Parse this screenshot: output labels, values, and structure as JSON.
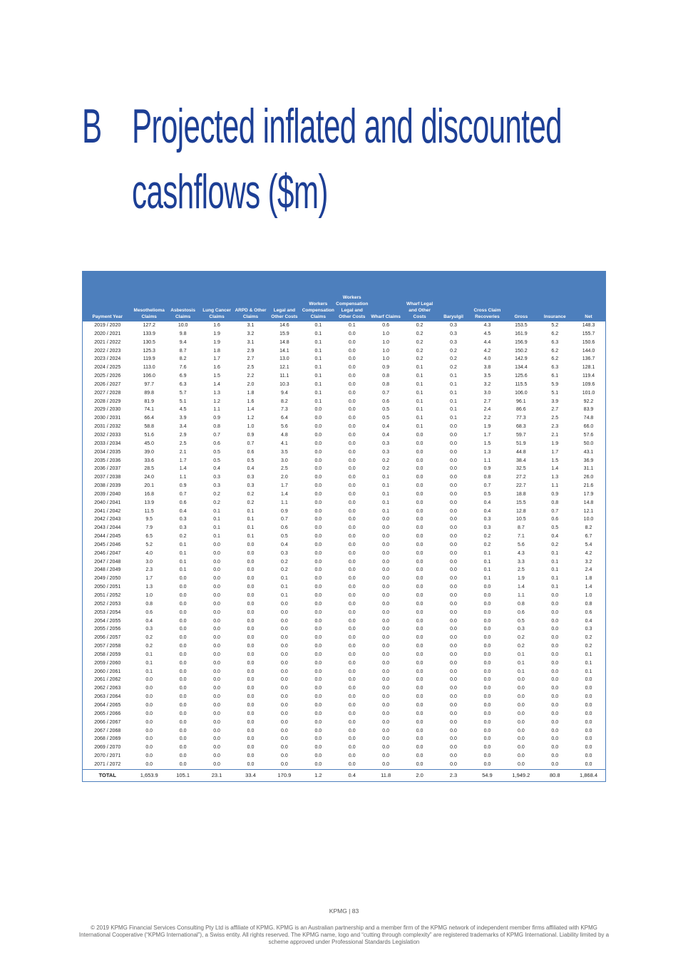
{
  "header": {
    "letter": "B",
    "title_line1": "Projected inflated and discounted",
    "title_line2": "cashflows ($m)"
  },
  "table": {
    "columns": [
      "Payment Year",
      "Mesothelioma Claims",
      "Asbestosis Claims",
      "Lung Cancer Claims",
      "ARPD & Other Claims",
      "Legal and Other Costs",
      "Workers Compensation Claims",
      "Workers Compensation Legal and Other Costs",
      "Wharf Claims",
      "Wharf Legal and Other Costs",
      "Baryulgil",
      "Cross Claim Recoveries",
      "Gross",
      "Insurance",
      "Net"
    ],
    "rows": [
      [
        "2019 / 2020",
        "127.2",
        "10.0",
        "1.6",
        "3.1",
        "14.6",
        "0.1",
        "0.1",
        "0.6",
        "0.2",
        "0.3",
        "4.3",
        "153.5",
        "5.2",
        "148.3"
      ],
      [
        "2020 / 2021",
        "133.9",
        "9.8",
        "1.9",
        "3.2",
        "15.9",
        "0.1",
        "0.0",
        "1.0",
        "0.2",
        "0.3",
        "4.5",
        "161.9",
        "6.2",
        "155.7"
      ],
      [
        "2021 / 2022",
        "130.5",
        "9.4",
        "1.9",
        "3.1",
        "14.8",
        "0.1",
        "0.0",
        "1.0",
        "0.2",
        "0.3",
        "4.4",
        "156.9",
        "6.3",
        "150.6"
      ],
      [
        "2022 / 2023",
        "125.3",
        "8.7",
        "1.8",
        "2.9",
        "14.1",
        "0.1",
        "0.0",
        "1.0",
        "0.2",
        "0.2",
        "4.2",
        "150.2",
        "6.2",
        "144.0"
      ],
      [
        "2023 / 2024",
        "119.9",
        "8.2",
        "1.7",
        "2.7",
        "13.0",
        "0.1",
        "0.0",
        "1.0",
        "0.2",
        "0.2",
        "4.0",
        "142.9",
        "6.2",
        "136.7"
      ],
      [
        "2024 / 2025",
        "113.0",
        "7.6",
        "1.6",
        "2.5",
        "12.1",
        "0.1",
        "0.0",
        "0.9",
        "0.1",
        "0.2",
        "3.8",
        "134.4",
        "6.3",
        "128.1"
      ],
      [
        "2025 / 2026",
        "106.0",
        "6.9",
        "1.5",
        "2.2",
        "11.1",
        "0.1",
        "0.0",
        "0.8",
        "0.1",
        "0.1",
        "3.5",
        "125.6",
        "6.1",
        "119.4"
      ],
      [
        "2026 / 2027",
        "97.7",
        "6.3",
        "1.4",
        "2.0",
        "10.3",
        "0.1",
        "0.0",
        "0.8",
        "0.1",
        "0.1",
        "3.2",
        "115.5",
        "5.9",
        "109.6"
      ],
      [
        "2027 / 2028",
        "89.8",
        "5.7",
        "1.3",
        "1.8",
        "9.4",
        "0.1",
        "0.0",
        "0.7",
        "0.1",
        "0.1",
        "3.0",
        "106.0",
        "5.1",
        "101.0"
      ],
      [
        "2028 / 2029",
        "81.9",
        "5.1",
        "1.2",
        "1.6",
        "8.2",
        "0.1",
        "0.0",
        "0.6",
        "0.1",
        "0.1",
        "2.7",
        "96.1",
        "3.9",
        "92.2"
      ],
      [
        "2029 / 2030",
        "74.1",
        "4.5",
        "1.1",
        "1.4",
        "7.3",
        "0.0",
        "0.0",
        "0.5",
        "0.1",
        "0.1",
        "2.4",
        "86.6",
        "2.7",
        "83.9"
      ],
      [
        "2030 / 2031",
        "66.4",
        "3.9",
        "0.9",
        "1.2",
        "6.4",
        "0.0",
        "0.0",
        "0.5",
        "0.1",
        "0.1",
        "2.2",
        "77.3",
        "2.5",
        "74.8"
      ],
      [
        "2031 / 2032",
        "58.8",
        "3.4",
        "0.8",
        "1.0",
        "5.6",
        "0.0",
        "0.0",
        "0.4",
        "0.1",
        "0.0",
        "1.9",
        "68.3",
        "2.3",
        "66.0"
      ],
      [
        "2032 / 2033",
        "51.6",
        "2.9",
        "0.7",
        "0.9",
        "4.8",
        "0.0",
        "0.0",
        "0.4",
        "0.0",
        "0.0",
        "1.7",
        "59.7",
        "2.1",
        "57.6"
      ],
      [
        "2033 / 2034",
        "45.0",
        "2.5",
        "0.6",
        "0.7",
        "4.1",
        "0.0",
        "0.0",
        "0.3",
        "0.0",
        "0.0",
        "1.5",
        "51.9",
        "1.9",
        "50.0"
      ],
      [
        "2034 / 2035",
        "39.0",
        "2.1",
        "0.5",
        "0.6",
        "3.5",
        "0.0",
        "0.0",
        "0.3",
        "0.0",
        "0.0",
        "1.3",
        "44.8",
        "1.7",
        "43.1"
      ],
      [
        "2035 / 2036",
        "33.6",
        "1.7",
        "0.5",
        "0.5",
        "3.0",
        "0.0",
        "0.0",
        "0.2",
        "0.0",
        "0.0",
        "1.1",
        "38.4",
        "1.5",
        "36.9"
      ],
      [
        "2036 / 2037",
        "28.5",
        "1.4",
        "0.4",
        "0.4",
        "2.5",
        "0.0",
        "0.0",
        "0.2",
        "0.0",
        "0.0",
        "0.9",
        "32.5",
        "1.4",
        "31.1"
      ],
      [
        "2037 / 2038",
        "24.0",
        "1.1",
        "0.3",
        "0.3",
        "2.0",
        "0.0",
        "0.0",
        "0.1",
        "0.0",
        "0.0",
        "0.8",
        "27.2",
        "1.3",
        "26.0"
      ],
      [
        "2038 / 2039",
        "20.1",
        "0.9",
        "0.3",
        "0.3",
        "1.7",
        "0.0",
        "0.0",
        "0.1",
        "0.0",
        "0.0",
        "0.7",
        "22.7",
        "1.1",
        "21.6"
      ],
      [
        "2039 / 2040",
        "16.8",
        "0.7",
        "0.2",
        "0.2",
        "1.4",
        "0.0",
        "0.0",
        "0.1",
        "0.0",
        "0.0",
        "0.5",
        "18.8",
        "0.9",
        "17.9"
      ],
      [
        "2040 / 2041",
        "13.9",
        "0.6",
        "0.2",
        "0.2",
        "1.1",
        "0.0",
        "0.0",
        "0.1",
        "0.0",
        "0.0",
        "0.4",
        "15.5",
        "0.8",
        "14.8"
      ],
      [
        "2041 / 2042",
        "11.5",
        "0.4",
        "0.1",
        "0.1",
        "0.9",
        "0.0",
        "0.0",
        "0.1",
        "0.0",
        "0.0",
        "0.4",
        "12.8",
        "0.7",
        "12.1"
      ],
      [
        "2042 / 2043",
        "9.5",
        "0.3",
        "0.1",
        "0.1",
        "0.7",
        "0.0",
        "0.0",
        "0.0",
        "0.0",
        "0.0",
        "0.3",
        "10.5",
        "0.6",
        "10.0"
      ],
      [
        "2043 / 2044",
        "7.9",
        "0.3",
        "0.1",
        "0.1",
        "0.6",
        "0.0",
        "0.0",
        "0.0",
        "0.0",
        "0.0",
        "0.3",
        "8.7",
        "0.5",
        "8.2"
      ],
      [
        "2044 / 2045",
        "6.5",
        "0.2",
        "0.1",
        "0.1",
        "0.5",
        "0.0",
        "0.0",
        "0.0",
        "0.0",
        "0.0",
        "0.2",
        "7.1",
        "0.4",
        "6.7"
      ],
      [
        "2045 / 2046",
        "5.2",
        "0.1",
        "0.0",
        "0.0",
        "0.4",
        "0.0",
        "0.0",
        "0.0",
        "0.0",
        "0.0",
        "0.2",
        "5.6",
        "0.2",
        "5.4"
      ],
      [
        "2046 / 2047",
        "4.0",
        "0.1",
        "0.0",
        "0.0",
        "0.3",
        "0.0",
        "0.0",
        "0.0",
        "0.0",
        "0.0",
        "0.1",
        "4.3",
        "0.1",
        "4.2"
      ],
      [
        "2047 / 2048",
        "3.0",
        "0.1",
        "0.0",
        "0.0",
        "0.2",
        "0.0",
        "0.0",
        "0.0",
        "0.0",
        "0.0",
        "0.1",
        "3.3",
        "0.1",
        "3.2"
      ],
      [
        "2048 / 2049",
        "2.3",
        "0.1",
        "0.0",
        "0.0",
        "0.2",
        "0.0",
        "0.0",
        "0.0",
        "0.0",
        "0.0",
        "0.1",
        "2.5",
        "0.1",
        "2.4"
      ],
      [
        "2049 / 2050",
        "1.7",
        "0.0",
        "0.0",
        "0.0",
        "0.1",
        "0.0",
        "0.0",
        "0.0",
        "0.0",
        "0.0",
        "0.1",
        "1.9",
        "0.1",
        "1.8"
      ],
      [
        "2050 / 2051",
        "1.3",
        "0.0",
        "0.0",
        "0.0",
        "0.1",
        "0.0",
        "0.0",
        "0.0",
        "0.0",
        "0.0",
        "0.0",
        "1.4",
        "0.1",
        "1.4"
      ],
      [
        "2051 / 2052",
        "1.0",
        "0.0",
        "0.0",
        "0.0",
        "0.1",
        "0.0",
        "0.0",
        "0.0",
        "0.0",
        "0.0",
        "0.0",
        "1.1",
        "0.0",
        "1.0"
      ],
      [
        "2052 / 2053",
        "0.8",
        "0.0",
        "0.0",
        "0.0",
        "0.0",
        "0.0",
        "0.0",
        "0.0",
        "0.0",
        "0.0",
        "0.0",
        "0.8",
        "0.0",
        "0.8"
      ],
      [
        "2053 / 2054",
        "0.6",
        "0.0",
        "0.0",
        "0.0",
        "0.0",
        "0.0",
        "0.0",
        "0.0",
        "0.0",
        "0.0",
        "0.0",
        "0.6",
        "0.0",
        "0.6"
      ],
      [
        "2054 / 2055",
        "0.4",
        "0.0",
        "0.0",
        "0.0",
        "0.0",
        "0.0",
        "0.0",
        "0.0",
        "0.0",
        "0.0",
        "0.0",
        "0.5",
        "0.0",
        "0.4"
      ],
      [
        "2055 / 2056",
        "0.3",
        "0.0",
        "0.0",
        "0.0",
        "0.0",
        "0.0",
        "0.0",
        "0.0",
        "0.0",
        "0.0",
        "0.0",
        "0.3",
        "0.0",
        "0.3"
      ],
      [
        "2056 / 2057",
        "0.2",
        "0.0",
        "0.0",
        "0.0",
        "0.0",
        "0.0",
        "0.0",
        "0.0",
        "0.0",
        "0.0",
        "0.0",
        "0.2",
        "0.0",
        "0.2"
      ],
      [
        "2057 / 2058",
        "0.2",
        "0.0",
        "0.0",
        "0.0",
        "0.0",
        "0.0",
        "0.0",
        "0.0",
        "0.0",
        "0.0",
        "0.0",
        "0.2",
        "0.0",
        "0.2"
      ],
      [
        "2058 / 2059",
        "0.1",
        "0.0",
        "0.0",
        "0.0",
        "0.0",
        "0.0",
        "0.0",
        "0.0",
        "0.0",
        "0.0",
        "0.0",
        "0.1",
        "0.0",
        "0.1"
      ],
      [
        "2059 / 2060",
        "0.1",
        "0.0",
        "0.0",
        "0.0",
        "0.0",
        "0.0",
        "0.0",
        "0.0",
        "0.0",
        "0.0",
        "0.0",
        "0.1",
        "0.0",
        "0.1"
      ],
      [
        "2060 / 2061",
        "0.1",
        "0.0",
        "0.0",
        "0.0",
        "0.0",
        "0.0",
        "0.0",
        "0.0",
        "0.0",
        "0.0",
        "0.0",
        "0.1",
        "0.0",
        "0.1"
      ],
      [
        "2061 / 2062",
        "0.0",
        "0.0",
        "0.0",
        "0.0",
        "0.0",
        "0.0",
        "0.0",
        "0.0",
        "0.0",
        "0.0",
        "0.0",
        "0.0",
        "0.0",
        "0.0"
      ],
      [
        "2062 / 2063",
        "0.0",
        "0.0",
        "0.0",
        "0.0",
        "0.0",
        "0.0",
        "0.0",
        "0.0",
        "0.0",
        "0.0",
        "0.0",
        "0.0",
        "0.0",
        "0.0"
      ],
      [
        "2063 / 2064",
        "0.0",
        "0.0",
        "0.0",
        "0.0",
        "0.0",
        "0.0",
        "0.0",
        "0.0",
        "0.0",
        "0.0",
        "0.0",
        "0.0",
        "0.0",
        "0.0"
      ],
      [
        "2064 / 2065",
        "0.0",
        "0.0",
        "0.0",
        "0.0",
        "0.0",
        "0.0",
        "0.0",
        "0.0",
        "0.0",
        "0.0",
        "0.0",
        "0.0",
        "0.0",
        "0.0"
      ],
      [
        "2065 / 2066",
        "0.0",
        "0.0",
        "0.0",
        "0.0",
        "0.0",
        "0.0",
        "0.0",
        "0.0",
        "0.0",
        "0.0",
        "0.0",
        "0.0",
        "0.0",
        "0.0"
      ],
      [
        "2066 / 2067",
        "0.0",
        "0.0",
        "0.0",
        "0.0",
        "0.0",
        "0.0",
        "0.0",
        "0.0",
        "0.0",
        "0.0",
        "0.0",
        "0.0",
        "0.0",
        "0.0"
      ],
      [
        "2067 / 2068",
        "0.0",
        "0.0",
        "0.0",
        "0.0",
        "0.0",
        "0.0",
        "0.0",
        "0.0",
        "0.0",
        "0.0",
        "0.0",
        "0.0",
        "0.0",
        "0.0"
      ],
      [
        "2068 / 2069",
        "0.0",
        "0.0",
        "0.0",
        "0.0",
        "0.0",
        "0.0",
        "0.0",
        "0.0",
        "0.0",
        "0.0",
        "0.0",
        "0.0",
        "0.0",
        "0.0"
      ],
      [
        "2069 / 2070",
        "0.0",
        "0.0",
        "0.0",
        "0.0",
        "0.0",
        "0.0",
        "0.0",
        "0.0",
        "0.0",
        "0.0",
        "0.0",
        "0.0",
        "0.0",
        "0.0"
      ],
      [
        "2070 / 2071",
        "0.0",
        "0.0",
        "0.0",
        "0.0",
        "0.0",
        "0.0",
        "0.0",
        "0.0",
        "0.0",
        "0.0",
        "0.0",
        "0.0",
        "0.0",
        "0.0"
      ],
      [
        "2071 / 2072",
        "0.0",
        "0.0",
        "0.0",
        "0.0",
        "0.0",
        "0.0",
        "0.0",
        "0.0",
        "0.0",
        "0.0",
        "0.0",
        "0.0",
        "0.0",
        "0.0"
      ]
    ],
    "total": [
      "TOTAL",
      "1,653.9",
      "105.1",
      "23.1",
      "33.4",
      "170.9",
      "1.2",
      "0.4",
      "11.8",
      "2.0",
      "2.3",
      "54.9",
      "1,949.2",
      "80.8",
      "1,868.4"
    ]
  },
  "footer": {
    "page": "KPMG | 83",
    "copyright": "© 2019 KPMG Financial Services Consulting Pty Ltd is affiliate of KPMG. KPMG is an Australian partnership and a member firm of the KPMG network of independent member firms affiliated with KPMG International Cooperative (“KPMG International”), a Swiss entity. All rights reserved. The KPMG name, logo and “cutting through complexity” are registered trademarks of KPMG International. Liability limited by a scheme approved under Professional Standards Legislation"
  }
}
